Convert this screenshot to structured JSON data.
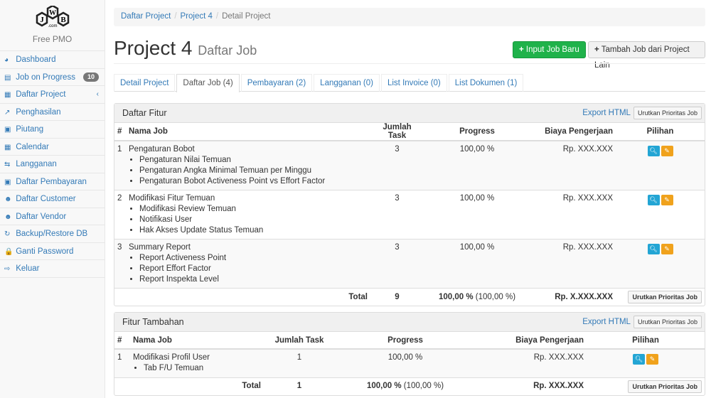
{
  "sidebar": {
    "logo_text": "JWB.com",
    "subtitle": "Free PMO",
    "items": [
      {
        "label": "Dashboard",
        "icon": "dashboard-icon",
        "glyph": "◕"
      },
      {
        "label": "Job on Progress",
        "icon": "tasks-icon",
        "glyph": "▤",
        "badge": "10"
      },
      {
        "label": "Daftar Project",
        "icon": "table-icon",
        "glyph": "▦"
      },
      {
        "label": "Penghasilan",
        "icon": "line-chart-icon",
        "glyph": "↗"
      },
      {
        "label": "Piutang",
        "icon": "money-icon",
        "glyph": "▣"
      },
      {
        "label": "Calendar",
        "icon": "calendar-icon",
        "glyph": "▦"
      },
      {
        "label": "Langganan",
        "icon": "retweet-icon",
        "glyph": "⇆"
      },
      {
        "label": "Daftar Pembayaran",
        "icon": "money-icon",
        "glyph": "▣"
      },
      {
        "label": "Daftar Customer",
        "icon": "users-icon",
        "glyph": "☻"
      },
      {
        "label": "Daftar Vendor",
        "icon": "users-icon",
        "glyph": "☻"
      },
      {
        "label": "Backup/Restore DB",
        "icon": "refresh-icon",
        "glyph": "↻"
      },
      {
        "label": "Ganti Password",
        "icon": "lock-icon",
        "glyph": "🔒"
      },
      {
        "label": "Keluar",
        "icon": "sign-out-icon",
        "glyph": "⇨"
      }
    ]
  },
  "breadcrumb": [
    "Daftar Project",
    "Project 4",
    "Detail Project"
  ],
  "header": {
    "title": "Project 4",
    "subtitle": "Daftar Job",
    "btn_new": "Input Job Baru",
    "btn_add": "Tambah Job dari Project Lain"
  },
  "tabs": [
    "Detail Project",
    "Daftar Job (4)",
    "Pembayaran (2)",
    "Langganan (0)",
    "List Invoice (0)",
    "List Dokumen (1)"
  ],
  "columns": [
    "#",
    "Nama Job",
    "Jumlah Task",
    "Progress",
    "Biaya Pengerjaan",
    "Pilihan"
  ],
  "export": "Export HTML",
  "sort": "Urutkan Prioritas Job",
  "panel1": {
    "title": "Daftar Fitur",
    "rows": [
      {
        "no": "1",
        "name": "Pengaturan Bobot",
        "subs": [
          "Pengaturan Nilai Temuan",
          "Pengaturan Angka Minimal Temuan per Minggu",
          "Pengaturan Bobot Activeness Point vs Effort Factor"
        ],
        "tasks": "3",
        "progress": "100,00 %",
        "cost": "Rp. XXX.XXX"
      },
      {
        "no": "2",
        "name": "Modifikasi Fitur Temuan",
        "subs": [
          "Modifikasi Review Temuan",
          "Notifikasi User",
          "Hak Akses Update Status Temuan"
        ],
        "tasks": "3",
        "progress": "100,00 %",
        "cost": "Rp. XXX.XXX"
      },
      {
        "no": "3",
        "name": "Summary Report",
        "subs": [
          "Report Activeness Point",
          "Report Effort Factor",
          "Report Inspekta Level"
        ],
        "tasks": "3",
        "progress": "100,00 %",
        "cost": "Rp. XXX.XXX"
      }
    ],
    "total": {
      "label": "Total",
      "tasks": "9",
      "progress": "100,00 %",
      "progress_sub": "(100,00 %)",
      "cost": "Rp. X.XXX.XXX"
    }
  },
  "panel2": {
    "title": "Fitur Tambahan",
    "rows": [
      {
        "no": "1",
        "name": "Modifikasi Profil User",
        "subs": [
          "Tab F/U Temuan"
        ],
        "tasks": "1",
        "progress": "100,00 %",
        "cost": "Rp. XXX.XXX"
      }
    ],
    "total": {
      "label": "Total",
      "tasks": "1",
      "progress": "100,00 %",
      "progress_sub": "(100,00 %)",
      "cost": "Rp. XXX.XXX"
    }
  }
}
